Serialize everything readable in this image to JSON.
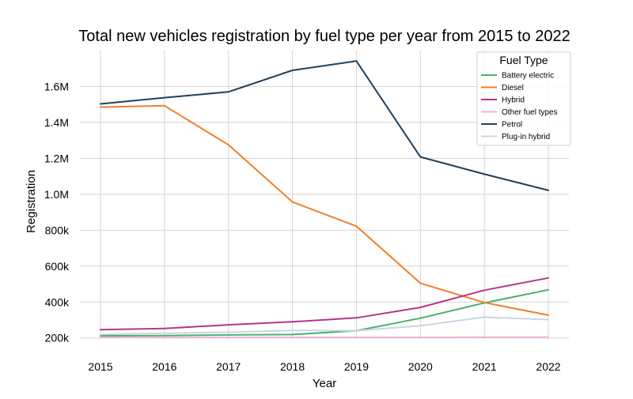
{
  "chart_data": {
    "type": "line",
    "title": "Total new vehicles registration by fuel type per year from 2015 to 2022",
    "xlabel": "Year",
    "ylabel": "Registration",
    "x": [
      2015,
      2016,
      2017,
      2018,
      2019,
      2020,
      2021,
      2022
    ],
    "ylim": [
      190000,
      1800000
    ],
    "yticks": [
      200000,
      400000,
      600000,
      800000,
      1000000,
      1200000,
      1400000,
      1600000
    ],
    "ytick_labels": [
      "200k",
      "400k",
      "600k",
      "800k",
      "1.0M",
      "1.2M",
      "1.4M",
      "1.6M"
    ],
    "grid": true,
    "legend": {
      "title": "Fuel Type",
      "placement": "top-right"
    },
    "series": [
      {
        "name": "Battery electric",
        "color": "#4caf6e",
        "values": [
          212000,
          213000,
          217000,
          219000,
          240000,
          310000,
          395000,
          468000
        ]
      },
      {
        "name": "Diesel",
        "color": "#f07f2a",
        "values": [
          1485000,
          1493000,
          1275000,
          957000,
          822000,
          505000,
          397000,
          327000
        ]
      },
      {
        "name": "Hybrid",
        "color": "#b5358a",
        "values": [
          246000,
          253000,
          273000,
          290000,
          312000,
          370000,
          466000,
          534000
        ]
      },
      {
        "name": "Other fuel types",
        "color": "#f0b4d8",
        "values": [
          203000,
          203000,
          203000,
          203000,
          203000,
          203000,
          204000,
          205000
        ]
      },
      {
        "name": "Petrol",
        "color": "#23405a",
        "values": [
          1503000,
          1538000,
          1570000,
          1690000,
          1742000,
          1208000,
          1112000,
          1022000
        ]
      },
      {
        "name": "Plug-in hybrid",
        "color": "#c9d6e3",
        "values": [
          220000,
          226000,
          232000,
          242000,
          240000,
          268000,
          316000,
          302000
        ]
      }
    ]
  }
}
